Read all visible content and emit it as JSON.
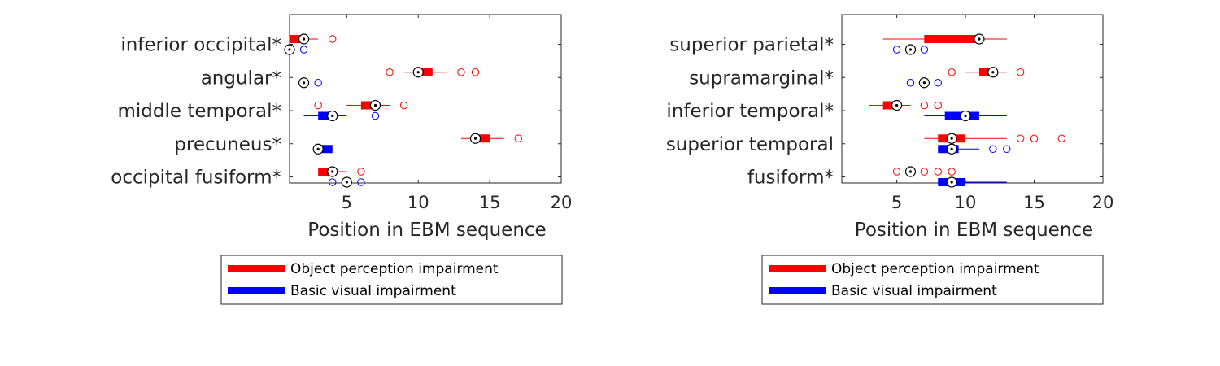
{
  "chart_data": [
    {
      "type": "boxplot",
      "orientation": "horizontal",
      "xlabel": "Position in EBM sequence",
      "xlim": [
        1,
        20
      ],
      "xticks": [
        5,
        10,
        15,
        20
      ],
      "grid": false,
      "legend_placement": "below",
      "categories": [
        "inferior occipital*",
        "angular*",
        "middle temporal*",
        "precuneus*",
        "occipital fusiform*"
      ],
      "series": [
        {
          "name": "Object perception impairment",
          "color": "#ff0000",
          "boxes": [
            {
              "category": "inferior occipital*",
              "whisker_low": 1,
              "q1": 1,
              "median": 2,
              "q3": 2,
              "whisker_high": 3,
              "outliers": [
                4
              ]
            },
            {
              "category": "angular*",
              "whisker_low": 9,
              "q1": 10,
              "median": 10,
              "q3": 11,
              "whisker_high": 12,
              "outliers": [
                8,
                13,
                14
              ]
            },
            {
              "category": "middle temporal*",
              "whisker_low": 5,
              "q1": 6,
              "median": 7,
              "q3": 7,
              "whisker_high": 8,
              "outliers": [
                3,
                9
              ]
            },
            {
              "category": "precuneus*",
              "whisker_low": 13,
              "q1": 14,
              "median": 14,
              "q3": 15,
              "whisker_high": 16,
              "outliers": [
                17
              ]
            },
            {
              "category": "occipital fusiform*",
              "whisker_low": 3,
              "q1": 3,
              "median": 4,
              "q3": 4,
              "whisker_high": 5,
              "outliers": [
                6
              ]
            }
          ]
        },
        {
          "name": "Basic visual impairment",
          "color": "#0000ff",
          "boxes": [
            {
              "category": "inferior occipital*",
              "whisker_low": 1,
              "q1": 1,
              "median": 1,
              "q3": 1,
              "whisker_high": 1,
              "outliers": [
                2
              ]
            },
            {
              "category": "angular*",
              "whisker_low": 2,
              "q1": 2,
              "median": 2,
              "q3": 2,
              "whisker_high": 2,
              "outliers": [
                3
              ]
            },
            {
              "category": "middle temporal*",
              "whisker_low": 2,
              "q1": 3,
              "median": 4,
              "q3": 4,
              "whisker_high": 5,
              "outliers": [
                7
              ]
            },
            {
              "category": "precuneus*",
              "whisker_low": 3,
              "q1": 3,
              "median": 3,
              "q3": 4,
              "whisker_high": 4,
              "outliers": []
            },
            {
              "category": "occipital fusiform*",
              "whisker_low": 5,
              "q1": 5,
              "median": 5,
              "q3": 5,
              "whisker_high": 5,
              "outliers": [
                4,
                6
              ]
            }
          ]
        }
      ]
    },
    {
      "type": "boxplot",
      "orientation": "horizontal",
      "xlabel": "Position in EBM sequence",
      "xlim": [
        1,
        20
      ],
      "xticks": [
        5,
        10,
        15,
        20
      ],
      "grid": false,
      "legend_placement": "below",
      "categories": [
        "superior parietal*",
        "supramarginal*",
        "inferior temporal*",
        "superior temporal",
        "fusiform*"
      ],
      "series": [
        {
          "name": "Object perception impairment",
          "color": "#ff0000",
          "boxes": [
            {
              "category": "superior parietal*",
              "whisker_low": 4,
              "q1": 7,
              "median": 11,
              "q3": 11,
              "whisker_high": 13,
              "outliers": []
            },
            {
              "category": "supramarginal*",
              "whisker_low": 10,
              "q1": 11,
              "median": 12,
              "q3": 12,
              "whisker_high": 13,
              "outliers": [
                9,
                14
              ]
            },
            {
              "category": "inferior temporal*",
              "whisker_low": 3,
              "q1": 4,
              "median": 5,
              "q3": 5,
              "whisker_high": 6,
              "outliers": [
                7,
                8
              ]
            },
            {
              "category": "superior temporal",
              "whisker_low": 7,
              "q1": 8,
              "median": 9,
              "q3": 10,
              "whisker_high": 13,
              "outliers": [
                14,
                15,
                17
              ]
            },
            {
              "category": "fusiform*",
              "whisker_low": 6,
              "q1": 6,
              "median": 6,
              "q3": 6,
              "whisker_high": 6,
              "outliers": [
                5,
                7,
                8,
                9
              ]
            }
          ]
        },
        {
          "name": "Basic visual impairment",
          "color": "#0000ff",
          "boxes": [
            {
              "category": "superior parietal*",
              "whisker_low": 6,
              "q1": 6,
              "median": 6,
              "q3": 6,
              "whisker_high": 6,
              "outliers": [
                5,
                7
              ]
            },
            {
              "category": "supramarginal*",
              "whisker_low": 7,
              "q1": 7,
              "median": 7,
              "q3": 7,
              "whisker_high": 7,
              "outliers": [
                6,
                8
              ]
            },
            {
              "category": "inferior temporal*",
              "whisker_low": 7,
              "q1": 8.5,
              "median": 10,
              "q3": 11,
              "whisker_high": 13,
              "outliers": []
            },
            {
              "category": "superior temporal",
              "whisker_low": 8,
              "q1": 8,
              "median": 9,
              "q3": 9.5,
              "whisker_high": 11,
              "outliers": [
                12,
                13
              ]
            },
            {
              "category": "fusiform*",
              "whisker_low": 8,
              "q1": 8,
              "median": 9,
              "q3": 10,
              "whisker_high": 13,
              "outliers": []
            }
          ]
        }
      ]
    }
  ]
}
